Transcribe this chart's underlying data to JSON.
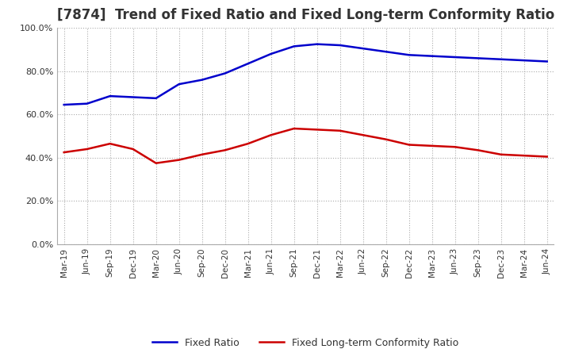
{
  "title": "[7874]  Trend of Fixed Ratio and Fixed Long-term Conformity Ratio",
  "x_labels": [
    "Mar-19",
    "Jun-19",
    "Sep-19",
    "Dec-19",
    "Mar-20",
    "Jun-20",
    "Sep-20",
    "Dec-20",
    "Mar-21",
    "Jun-21",
    "Sep-21",
    "Dec-21",
    "Mar-22",
    "Jun-22",
    "Sep-22",
    "Dec-22",
    "Mar-23",
    "Jun-23",
    "Sep-23",
    "Dec-23",
    "Mar-24",
    "Jun-24"
  ],
  "fixed_ratio": [
    64.5,
    65.0,
    68.5,
    68.0,
    67.5,
    74.0,
    76.0,
    79.0,
    83.5,
    88.0,
    91.5,
    92.5,
    92.0,
    90.5,
    89.0,
    87.5,
    87.0,
    86.5,
    86.0,
    85.5,
    85.0,
    84.5
  ],
  "fixed_lt_ratio": [
    42.5,
    44.0,
    46.5,
    44.0,
    37.5,
    39.0,
    41.5,
    43.5,
    46.5,
    50.5,
    53.5,
    53.0,
    52.5,
    50.5,
    48.5,
    46.0,
    45.5,
    45.0,
    43.5,
    41.5,
    41.0,
    40.5
  ],
  "fixed_ratio_color": "#0000cc",
  "fixed_lt_ratio_color": "#cc0000",
  "ylim": [
    0,
    100
  ],
  "yticks": [
    0,
    20,
    40,
    60,
    80,
    100
  ],
  "background_color": "#ffffff",
  "grid_color": "#aaaaaa",
  "title_fontsize": 12,
  "legend_labels": [
    "Fixed Ratio",
    "Fixed Long-term Conformity Ratio"
  ]
}
